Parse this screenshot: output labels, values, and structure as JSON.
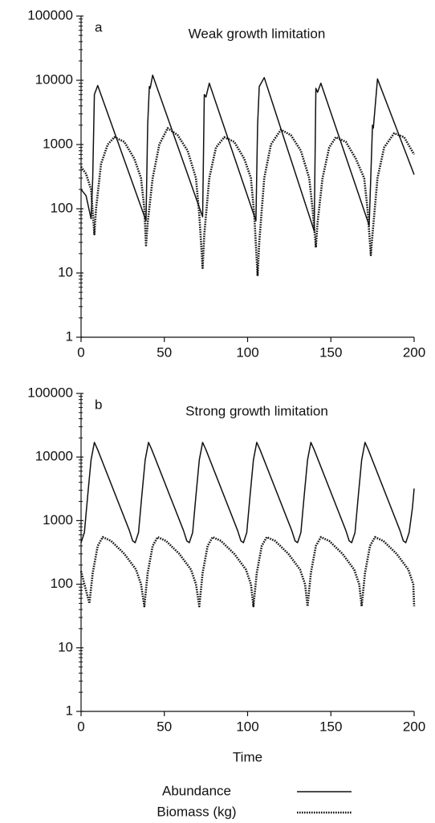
{
  "chart_data": [
    {
      "type": "line",
      "label": "a",
      "title": "Weak growth limitation",
      "log_y": true,
      "xlim": [
        0,
        200
      ],
      "xticks": [
        0,
        50,
        100,
        150,
        200
      ],
      "ylim": [
        1,
        100000
      ],
      "yticks": [
        1,
        10,
        100,
        1000,
        10000,
        100000
      ],
      "series": [
        {
          "name": "Abundance",
          "color": "#111111",
          "style": "solid",
          "x": [
            0,
            3,
            6,
            7,
            8,
            10,
            39,
            40,
            41,
            41.5,
            43,
            73,
            74,
            75,
            77,
            105,
            106,
            107,
            110,
            140,
            141,
            142,
            144,
            173,
            175,
            175.5,
            178,
            200
          ],
          "values": [
            200,
            160,
            70,
            300,
            6000,
            8300,
            65,
            2000,
            8000,
            7500,
            12000,
            75,
            6000,
            5500,
            9000,
            65,
            2000,
            8000,
            11000,
            45,
            7500,
            6500,
            9000,
            55,
            2000,
            1800,
            10500,
            340
          ]
        },
        {
          "name": "Biomass (kg)",
          "color": "#111111",
          "style": "dotted",
          "x": [
            0,
            3,
            6,
            8,
            9,
            12,
            16,
            20,
            26,
            32,
            36,
            38,
            39,
            40,
            43,
            47,
            52,
            58,
            64,
            69,
            71,
            73,
            74,
            77,
            81,
            86,
            92,
            98,
            102,
            104,
            106,
            107,
            110,
            114,
            120,
            126,
            132,
            137,
            139,
            141,
            142,
            145,
            149,
            153,
            159,
            165,
            170,
            172,
            174,
            175,
            178,
            182,
            188,
            194,
            200
          ],
          "values": [
            450,
            350,
            200,
            40,
            100,
            500,
            1000,
            1300,
            1100,
            600,
            300,
            100,
            27,
            60,
            300,
            1000,
            1800,
            1400,
            800,
            300,
            80,
            12,
            40,
            300,
            900,
            1300,
            1100,
            600,
            300,
            80,
            9,
            30,
            300,
            1000,
            1700,
            1400,
            800,
            300,
            100,
            25,
            60,
            300,
            900,
            1300,
            1100,
            600,
            300,
            100,
            19,
            40,
            300,
            900,
            1500,
            1300,
            700
          ]
        }
      ]
    },
    {
      "type": "line",
      "label": "b",
      "title": "Strong growth limitation",
      "log_y": true,
      "xlabel": "Time",
      "xlim": [
        0,
        200
      ],
      "xticks": [
        0,
        50,
        100,
        150,
        200
      ],
      "ylim": [
        1,
        100000
      ],
      "yticks": [
        1,
        10,
        100,
        1000,
        10000,
        100000
      ],
      "series": [
        {
          "name": "Abundance",
          "color": "#111111",
          "style": "solid",
          "x": [
            0,
            2,
            4,
            6,
            8,
            10,
            29,
            31,
            32.5,
            34.5,
            36.5,
            38.5,
            40.5,
            42.5,
            61.5,
            63.5,
            65,
            67,
            69,
            71,
            73,
            75,
            94,
            96,
            97.5,
            99.5,
            101.5,
            103.5,
            105.5,
            107.5,
            126.5,
            128.5,
            130,
            132,
            134,
            136,
            138,
            140,
            159,
            161,
            162.5,
            164.5,
            166.5,
            168.5,
            170.5,
            172.5,
            191.5,
            193.5,
            195,
            197,
            199,
            200
          ],
          "values": [
            450,
            650,
            2500,
            9000,
            17000,
            13000,
            700,
            480,
            450,
            650,
            2500,
            9000,
            17000,
            13000,
            700,
            480,
            450,
            650,
            2500,
            9000,
            17000,
            13000,
            700,
            480,
            450,
            650,
            2500,
            9000,
            17000,
            13000,
            700,
            480,
            450,
            650,
            2500,
            9000,
            17000,
            13000,
            700,
            480,
            450,
            650,
            2500,
            9000,
            17000,
            13000,
            700,
            480,
            450,
            650,
            1600,
            3200
          ]
        },
        {
          "name": "Biomass (kg)",
          "color": "#111111",
          "style": "dotted",
          "x": [
            0,
            2,
            5,
            7,
            10,
            13,
            18,
            26,
            33,
            36,
            38,
            40,
            43,
            46,
            51,
            59,
            66,
            69,
            71,
            73,
            76,
            79,
            84,
            92,
            99,
            102,
            103.5,
            105.5,
            108.5,
            111.5,
            116.5,
            124.5,
            131.5,
            134.5,
            136,
            138,
            141,
            144,
            149,
            157,
            164,
            167,
            168.5,
            170.5,
            173.5,
            176.5,
            181.5,
            189.5,
            196.5,
            199.5,
            200
          ],
          "values": [
            160,
            100,
            50,
            150,
            400,
            550,
            480,
            300,
            170,
            100,
            45,
            150,
            400,
            550,
            480,
            300,
            170,
            100,
            45,
            150,
            400,
            550,
            480,
            300,
            170,
            100,
            45,
            150,
            400,
            550,
            480,
            300,
            170,
            100,
            45,
            150,
            400,
            550,
            480,
            300,
            170,
            100,
            45,
            150,
            400,
            550,
            480,
            300,
            170,
            100,
            45
          ]
        }
      ]
    }
  ]
}
